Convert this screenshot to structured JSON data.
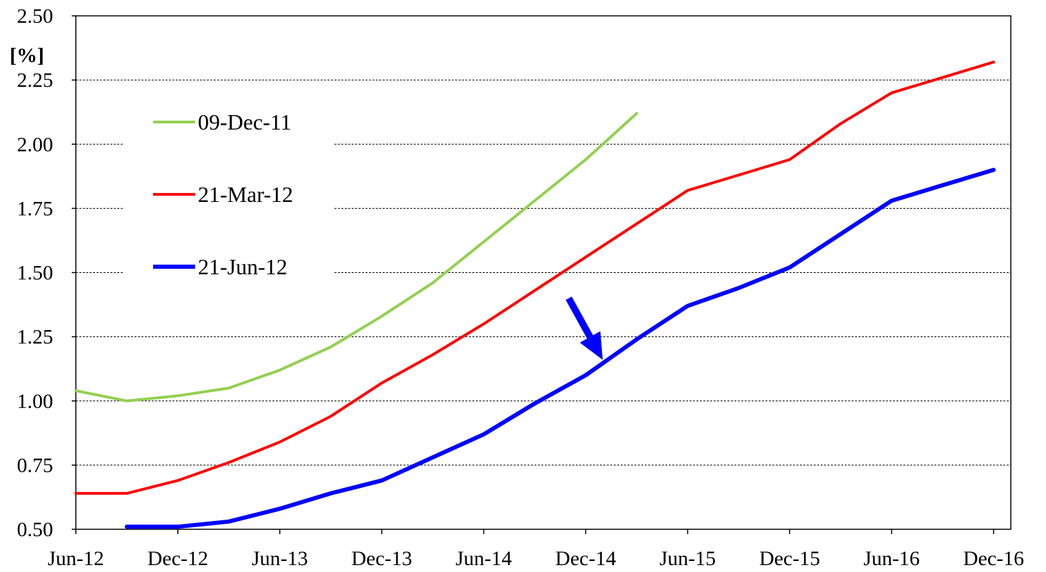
{
  "chart_data": {
    "type": "line",
    "ylabel": "[%]",
    "ylim": [
      0.5,
      2.5
    ],
    "yticks": [
      "0.50",
      "0.75",
      "1.00",
      "1.25",
      "1.50",
      "1.75",
      "2.00",
      "2.25",
      "2.50"
    ],
    "xticks": [
      "Jun-12",
      "Dec-12",
      "Jun-13",
      "Dec-13",
      "Jun-14",
      "Dec-14",
      "Jun-15",
      "Dec-15",
      "Jun-16",
      "Dec-16"
    ],
    "grid": "horizontal dashed",
    "legend_position": "top-left",
    "series": [
      {
        "name": "09-Dec-11",
        "color": "#92d050",
        "points": [
          [
            "Jun-12",
            1.04
          ],
          [
            "Sep-12",
            1.0
          ],
          [
            "Dec-12",
            1.02
          ],
          [
            "Mar-13",
            1.05
          ],
          [
            "Jun-13",
            1.12
          ],
          [
            "Sep-13",
            1.21
          ],
          [
            "Dec-13",
            1.33
          ],
          [
            "Mar-14",
            1.46
          ],
          [
            "Jun-14",
            1.62
          ],
          [
            "Sep-14",
            1.78
          ],
          [
            "Dec-14",
            1.94
          ],
          [
            "Mar-15",
            2.12
          ]
        ]
      },
      {
        "name": "21-Mar-12",
        "color": "#ff0000",
        "points": [
          [
            "Jun-12",
            0.64
          ],
          [
            "Sep-12",
            0.64
          ],
          [
            "Dec-12",
            0.69
          ],
          [
            "Mar-13",
            0.76
          ],
          [
            "Jun-13",
            0.84
          ],
          [
            "Sep-13",
            0.94
          ],
          [
            "Dec-13",
            1.07
          ],
          [
            "Mar-14",
            1.18
          ],
          [
            "Jun-14",
            1.3
          ],
          [
            "Sep-14",
            1.43
          ],
          [
            "Dec-14",
            1.56
          ],
          [
            "Mar-15",
            1.69
          ],
          [
            "Jun-15",
            1.82
          ],
          [
            "Sep-15",
            1.88
          ],
          [
            "Dec-15",
            1.94
          ],
          [
            "Mar-16",
            2.08
          ],
          [
            "Jun-16",
            2.2
          ],
          [
            "Sep-16",
            2.26
          ],
          [
            "Dec-16",
            2.32
          ]
        ]
      },
      {
        "name": "21-Jun-12",
        "color": "#0000ff",
        "points": [
          [
            "Sep-12",
            0.51
          ],
          [
            "Dec-12",
            0.51
          ],
          [
            "Mar-13",
            0.53
          ],
          [
            "Jun-13",
            0.58
          ],
          [
            "Sep-13",
            0.64
          ],
          [
            "Dec-13",
            0.69
          ],
          [
            "Mar-14",
            0.78
          ],
          [
            "Jun-14",
            0.87
          ],
          [
            "Sep-14",
            0.99
          ],
          [
            "Dec-14",
            1.1
          ],
          [
            "Mar-15",
            1.24
          ],
          [
            "Jun-15",
            1.37
          ],
          [
            "Sep-15",
            1.44
          ],
          [
            "Dec-15",
            1.52
          ],
          [
            "Mar-16",
            1.65
          ],
          [
            "Jun-16",
            1.78
          ],
          [
            "Sep-16",
            1.84
          ],
          [
            "Dec-16",
            1.9
          ]
        ]
      }
    ],
    "annotations": [
      {
        "type": "arrow",
        "color": "#0000ff",
        "from": [
          "Nov-14",
          1.4
        ],
        "to": [
          "Jan-15",
          1.16
        ]
      }
    ]
  }
}
